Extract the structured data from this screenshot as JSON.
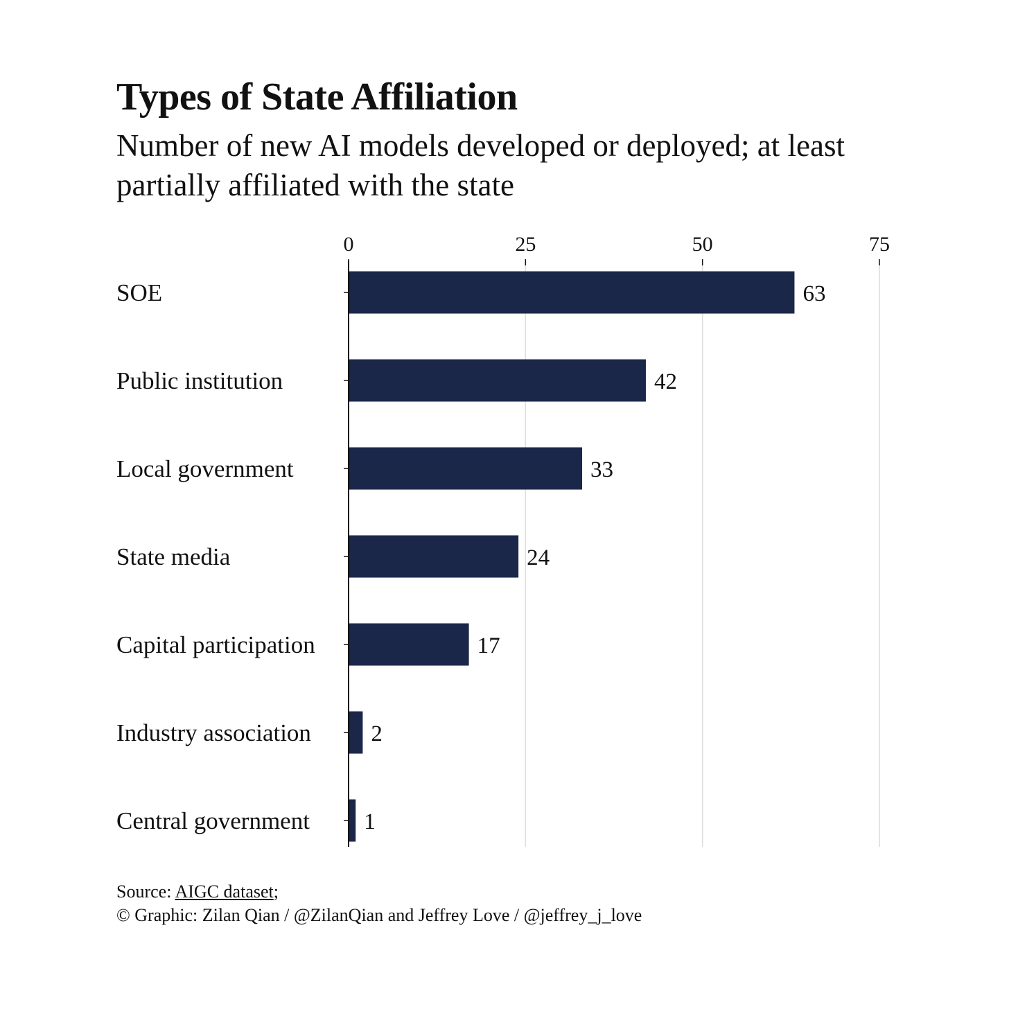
{
  "chart_data": {
    "type": "bar",
    "orientation": "horizontal",
    "title": "Types of State Affiliation",
    "subtitle": "Number of new AI models developed or deployed; at least partially affiliated with the state",
    "categories": [
      "SOE",
      "Public institution",
      "Local government",
      "State media",
      "Capital participation",
      "Industry association",
      "Central government"
    ],
    "values": [
      63,
      42,
      33,
      24,
      17,
      2,
      1
    ],
    "xlim": [
      0,
      75
    ],
    "xticks": [
      0,
      25,
      50,
      75
    ],
    "xlabel": "",
    "ylabel": "",
    "grid": true,
    "bar_color": "#1b2749"
  },
  "footer": {
    "source_prefix": "Source: ",
    "source_link": "AIGC dataset",
    "source_suffix": ";",
    "credit": "© Graphic: Zilan Qian / @ZilanQian and Jeffrey Love / @jeffrey_j_love"
  }
}
